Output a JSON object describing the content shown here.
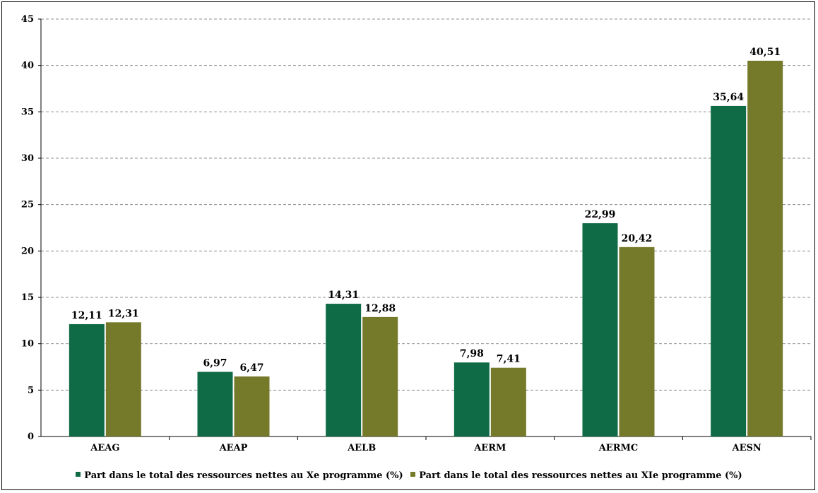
{
  "chart_data": {
    "type": "bar",
    "categories": [
      "AEAG",
      "AEAP",
      "AELB",
      "AERM",
      "AERMC",
      "AESN"
    ],
    "series": [
      {
        "name": "Part dans le total des ressources nettes au Xe programme (%)",
        "values": [
          12.11,
          6.97,
          14.31,
          7.98,
          22.99,
          35.64
        ],
        "labels": [
          "12,11",
          "6,97",
          "14,31",
          "7,98",
          "22,99",
          "35,64"
        ],
        "color": "#0e6b45"
      },
      {
        "name": "Part dans le total des ressources nettes au XIe programme (%)",
        "values": [
          12.31,
          6.47,
          12.88,
          7.41,
          20.42,
          40.51
        ],
        "labels": [
          "12,31",
          "6,47",
          "12,88",
          "7,41",
          "20,42",
          "40,51"
        ],
        "color": "#75792a"
      }
    ],
    "ylim": [
      0,
      45
    ],
    "yticks": [
      "0",
      "5",
      "10",
      "15",
      "20",
      "25",
      "30",
      "35",
      "40",
      "45"
    ],
    "grid": true,
    "legend_position": "bottom"
  }
}
